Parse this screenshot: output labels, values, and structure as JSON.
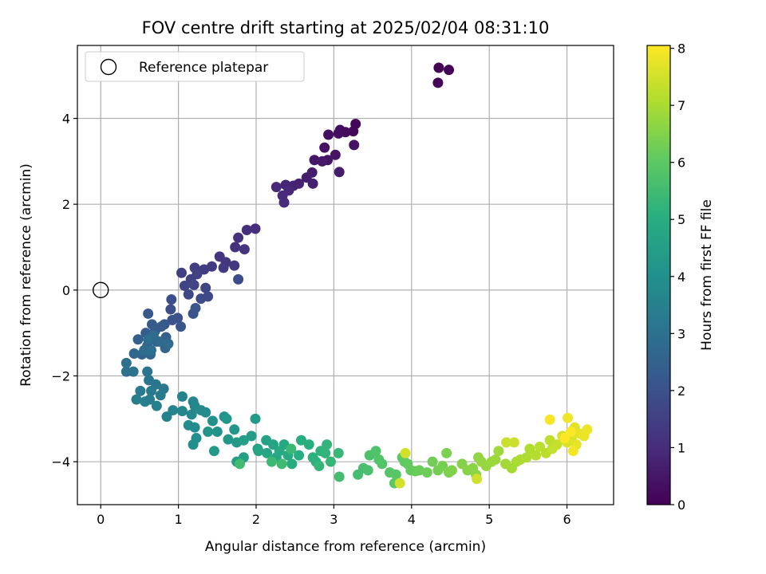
{
  "chart_data": {
    "type": "scatter",
    "title": "FOV centre drift starting at 2025/02/04 08:31:10",
    "xlabel": "Angular distance from reference (arcmin)",
    "ylabel": "Rotation from reference (arcmin)",
    "xlim": [
      -0.3,
      6.6
    ],
    "ylim": [
      -5.0,
      5.7
    ],
    "xticks": [
      0,
      1,
      2,
      3,
      4,
      5,
      6
    ],
    "yticks": [
      -4,
      -2,
      0,
      2,
      4
    ],
    "xtick_labels": [
      "0",
      "1",
      "2",
      "3",
      "4",
      "5",
      "6"
    ],
    "ytick_labels": [
      "−4",
      "−2",
      "0",
      "2",
      "4"
    ],
    "grid": true,
    "legend": {
      "position": "top-left",
      "entries": [
        "Reference platepar"
      ]
    },
    "colorbar": {
      "label": "Hours from first FF file",
      "colormap": "viridis",
      "range": [
        0,
        8.05
      ],
      "ticks": [
        "0",
        "1",
        "2",
        "3",
        "4",
        "5",
        "6",
        "7",
        "8"
      ]
    },
    "reference_point": {
      "x": 0,
      "y": 0
    },
    "series": [
      {
        "points": [
          [
            4.35,
            5.18
          ],
          [
            4.48,
            5.13
          ],
          [
            4.34,
            4.83
          ],
          [
            3.28,
            3.87
          ],
          [
            3.25,
            3.7
          ],
          [
            3.15,
            3.68
          ],
          [
            3.08,
            3.73
          ],
          [
            3.06,
            3.65
          ],
          [
            2.93,
            3.62
          ],
          [
            3.26,
            3.38
          ],
          [
            2.88,
            3.32
          ],
          [
            3.02,
            3.15
          ],
          [
            2.92,
            3.03
          ],
          [
            2.75,
            3.03
          ],
          [
            2.85,
            3.0
          ],
          [
            3.07,
            2.75
          ],
          [
            2.72,
            2.74
          ],
          [
            2.65,
            2.62
          ],
          [
            2.73,
            2.48
          ],
          [
            2.55,
            2.48
          ],
          [
            2.48,
            2.43
          ],
          [
            2.38,
            2.45
          ],
          [
            2.26,
            2.4
          ],
          [
            2.42,
            2.32
          ],
          [
            2.34,
            2.2
          ],
          [
            2.36,
            2.04
          ],
          [
            1.99,
            1.43
          ],
          [
            1.88,
            1.4
          ],
          [
            1.77,
            1.22
          ],
          [
            1.73,
            1.0
          ],
          [
            1.85,
            0.95
          ],
          [
            1.53,
            0.78
          ],
          [
            1.61,
            0.65
          ],
          [
            1.72,
            0.57
          ],
          [
            1.58,
            0.52
          ],
          [
            1.43,
            0.55
          ],
          [
            1.33,
            0.48
          ],
          [
            1.21,
            0.52
          ],
          [
            1.04,
            0.4
          ],
          [
            1.24,
            0.37
          ],
          [
            1.16,
            0.25
          ],
          [
            1.08,
            0.1
          ],
          [
            1.2,
            0.12
          ],
          [
            1.35,
            0.05
          ],
          [
            1.13,
            -0.1
          ],
          [
            1.38,
            -0.15
          ],
          [
            1.29,
            -0.2
          ],
          [
            1.77,
            0.25
          ],
          [
            0.91,
            -0.22
          ],
          [
            0.9,
            -0.45
          ],
          [
            0.99,
            -0.65
          ],
          [
            0.92,
            -0.7
          ],
          [
            1.19,
            -0.55
          ],
          [
            1.22,
            -0.42
          ],
          [
            1.03,
            -0.85
          ],
          [
            0.82,
            -0.8
          ],
          [
            0.61,
            -0.55
          ],
          [
            0.66,
            -0.8
          ],
          [
            0.78,
            -0.85
          ],
          [
            0.7,
            -0.95
          ],
          [
            0.58,
            -1.0
          ],
          [
            0.84,
            -1.1
          ],
          [
            0.72,
            -1.2
          ],
          [
            0.48,
            -1.15
          ],
          [
            0.6,
            -1.3
          ],
          [
            0.83,
            -1.35
          ],
          [
            0.53,
            -1.5
          ],
          [
            0.64,
            -1.5
          ],
          [
            0.43,
            -1.48
          ],
          [
            0.75,
            -1.2
          ],
          [
            0.68,
            -1.05
          ],
          [
            0.87,
            -1.25
          ],
          [
            0.56,
            -1.4
          ],
          [
            0.65,
            -1.4
          ],
          [
            0.61,
            -1.15
          ],
          [
            0.33,
            -1.7
          ],
          [
            0.33,
            -1.9
          ],
          [
            0.42,
            -1.9
          ],
          [
            0.6,
            -1.9
          ],
          [
            0.62,
            -2.1
          ],
          [
            0.71,
            -2.2
          ],
          [
            0.81,
            -2.3
          ],
          [
            0.65,
            -2.35
          ],
          [
            0.77,
            -2.45
          ],
          [
            0.51,
            -2.35
          ],
          [
            0.63,
            -2.55
          ],
          [
            0.46,
            -2.55
          ],
          [
            0.57,
            -2.6
          ],
          [
            0.72,
            -2.7
          ],
          [
            0.85,
            -2.95
          ],
          [
            1.05,
            -2.48
          ],
          [
            0.93,
            -2.8
          ],
          [
            1.05,
            -2.82
          ],
          [
            1.19,
            -2.6
          ],
          [
            1.21,
            -2.7
          ],
          [
            1.17,
            -2.9
          ],
          [
            1.29,
            -2.8
          ],
          [
            1.35,
            -2.85
          ],
          [
            1.13,
            -3.15
          ],
          [
            1.21,
            -3.2
          ],
          [
            1.23,
            -3.45
          ],
          [
            1.19,
            -3.6
          ],
          [
            1.44,
            -3.05
          ],
          [
            1.59,
            -2.95
          ],
          [
            1.5,
            -3.3
          ],
          [
            1.38,
            -3.3
          ],
          [
            1.62,
            -3.0
          ],
          [
            1.72,
            -3.25
          ],
          [
            1.64,
            -3.48
          ],
          [
            1.46,
            -3.75
          ],
          [
            1.75,
            -3.55
          ],
          [
            1.99,
            -3.0
          ],
          [
            1.94,
            -3.4
          ],
          [
            1.84,
            -3.5
          ],
          [
            1.75,
            -4.0
          ],
          [
            1.84,
            -3.9
          ],
          [
            2.02,
            -3.7
          ],
          [
            2.13,
            -3.5
          ],
          [
            2.22,
            -3.6
          ],
          [
            2.03,
            -3.75
          ],
          [
            2.26,
            -3.9
          ],
          [
            2.14,
            -3.8
          ],
          [
            2.36,
            -3.6
          ],
          [
            2.3,
            -3.75
          ],
          [
            2.41,
            -3.85
          ],
          [
            2.46,
            -4.05
          ],
          [
            2.55,
            -3.85
          ],
          [
            2.58,
            -3.5
          ],
          [
            2.68,
            -3.6
          ],
          [
            2.73,
            -3.9
          ],
          [
            2.77,
            -4.0
          ],
          [
            2.83,
            -3.75
          ],
          [
            2.89,
            -3.8
          ],
          [
            2.91,
            -3.6
          ],
          [
            2.81,
            -4.1
          ],
          [
            2.96,
            -4.0
          ],
          [
            3.06,
            -3.8
          ],
          [
            2.45,
            -3.7
          ],
          [
            2.2,
            -4.0
          ],
          [
            2.33,
            -4.05
          ],
          [
            1.79,
            -4.05
          ],
          [
            3.07,
            -4.35
          ],
          [
            3.31,
            -4.3
          ],
          [
            3.38,
            -4.15
          ],
          [
            3.44,
            -4.2
          ],
          [
            3.46,
            -3.85
          ],
          [
            3.54,
            -3.75
          ],
          [
            3.58,
            -3.95
          ],
          [
            3.62,
            -4.05
          ],
          [
            3.72,
            -4.25
          ],
          [
            3.8,
            -4.3
          ],
          [
            3.78,
            -4.5
          ],
          [
            3.88,
            -3.9
          ],
          [
            3.91,
            -4.0
          ],
          [
            3.95,
            -4.05
          ],
          [
            3.99,
            -4.2
          ],
          [
            4.05,
            -4.22
          ],
          [
            4.1,
            -4.2
          ],
          [
            4.2,
            -4.25
          ],
          [
            4.27,
            -4.0
          ],
          [
            4.34,
            -4.2
          ],
          [
            4.4,
            -4.1
          ],
          [
            4.45,
            -3.8
          ],
          [
            4.48,
            -4.25
          ],
          [
            4.52,
            -4.2
          ],
          [
            4.65,
            -4.05
          ],
          [
            4.72,
            -4.2
          ],
          [
            4.79,
            -4.15
          ],
          [
            4.83,
            -4.3
          ],
          [
            4.86,
            -3.9
          ],
          [
            4.9,
            -4.0
          ],
          [
            4.96,
            -4.1
          ],
          [
            5.03,
            -4.0
          ],
          [
            5.08,
            -3.95
          ],
          [
            5.12,
            -3.75
          ],
          [
            5.21,
            -4.05
          ],
          [
            5.29,
            -4.15
          ],
          [
            5.35,
            -4.0
          ],
          [
            5.4,
            -3.95
          ],
          [
            5.48,
            -3.9
          ],
          [
            5.52,
            -3.7
          ],
          [
            5.6,
            -3.85
          ],
          [
            5.65,
            -3.65
          ],
          [
            5.73,
            -3.8
          ],
          [
            5.78,
            -3.5
          ],
          [
            5.81,
            -3.7
          ],
          [
            5.87,
            -3.6
          ],
          [
            5.22,
            -3.55
          ],
          [
            5.32,
            -3.55
          ],
          [
            4.84,
            -4.4
          ],
          [
            3.92,
            -3.8
          ],
          [
            3.85,
            -4.5
          ],
          [
            5.94,
            -3.4
          ],
          [
            6.0,
            -3.55
          ],
          [
            6.06,
            -3.45
          ],
          [
            6.1,
            -3.2
          ],
          [
            6.12,
            -3.6
          ],
          [
            6.17,
            -3.35
          ],
          [
            6.22,
            -3.4
          ],
          [
            6.26,
            -3.25
          ],
          [
            6.01,
            -2.98
          ],
          [
            6.08,
            -3.75
          ],
          [
            5.78,
            -3.02
          ],
          [
            6.05,
            -3.3
          ],
          [
            5.97,
            -3.45
          ]
        ]
      }
    ]
  }
}
